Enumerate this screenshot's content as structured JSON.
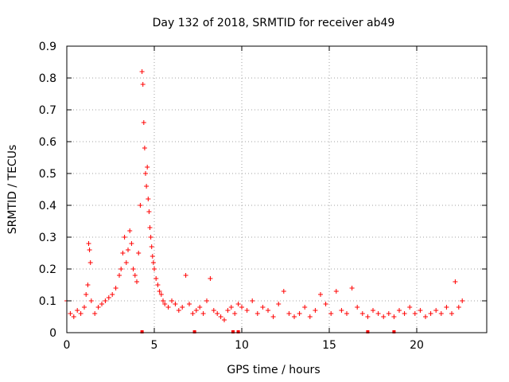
{
  "chart_data": {
    "type": "scatter",
    "title": "Day 132 of 2018, SRMTID for receiver ab49",
    "xlabel": "GPS time / hours",
    "ylabel": "SRMTID / TECUs",
    "xlim": [
      0,
      24
    ],
    "ylim": [
      0,
      0.9
    ],
    "xticks": [
      0,
      5,
      10,
      15,
      20
    ],
    "xtick_labels": [
      "0",
      "5",
      "10",
      "15",
      "20"
    ],
    "yticks": [
      0,
      0.1,
      0.2,
      0.3,
      0.4,
      0.5,
      0.6,
      0.7,
      0.8,
      0.9
    ],
    "ytick_labels": [
      "0",
      "0.1",
      "0.2",
      "0.3",
      "0.4",
      "0.5",
      "0.6",
      "0.7",
      "0.8",
      "0.9"
    ],
    "grid": true,
    "marker": "+",
    "color": "#ff0000",
    "series": [
      {
        "name": "SRMTID",
        "x": [
          0.0,
          0.2,
          0.4,
          0.6,
          0.8,
          1.0,
          1.1,
          1.2,
          1.25,
          1.3,
          1.35,
          1.4,
          1.6,
          1.8,
          2.0,
          2.2,
          2.4,
          2.6,
          2.8,
          3.0,
          3.1,
          3.2,
          3.3,
          3.4,
          3.5,
          3.6,
          3.7,
          3.8,
          3.9,
          4.0,
          4.1,
          4.2,
          4.3,
          4.35,
          4.4,
          4.45,
          4.5,
          4.55,
          4.6,
          4.65,
          4.7,
          4.75,
          4.8,
          4.85,
          4.9,
          4.95,
          5.0,
          5.1,
          5.2,
          5.3,
          5.4,
          5.5,
          5.6,
          5.8,
          6.0,
          6.2,
          6.4,
          6.6,
          6.8,
          7.0,
          7.2,
          7.4,
          7.6,
          7.8,
          8.0,
          8.2,
          8.4,
          8.6,
          8.8,
          9.0,
          9.2,
          9.4,
          9.6,
          9.8,
          10.0,
          10.3,
          10.6,
          10.9,
          11.2,
          11.5,
          11.8,
          12.1,
          12.4,
          12.7,
          13.0,
          13.3,
          13.6,
          13.9,
          14.2,
          14.5,
          14.8,
          15.1,
          15.4,
          15.7,
          16.0,
          16.3,
          16.6,
          16.9,
          17.2,
          17.5,
          17.8,
          18.1,
          18.4,
          18.7,
          19.0,
          19.3,
          19.6,
          19.9,
          20.2,
          20.5,
          20.8,
          21.1,
          21.4,
          21.7,
          22.0,
          22.2,
          22.4,
          22.6
        ],
        "y": [
          0.1,
          0.06,
          0.05,
          0.07,
          0.06,
          0.08,
          0.12,
          0.15,
          0.28,
          0.26,
          0.22,
          0.1,
          0.06,
          0.08,
          0.09,
          0.1,
          0.11,
          0.12,
          0.14,
          0.18,
          0.2,
          0.25,
          0.3,
          0.22,
          0.26,
          0.32,
          0.28,
          0.2,
          0.18,
          0.16,
          0.25,
          0.4,
          0.82,
          0.78,
          0.66,
          0.58,
          0.5,
          0.46,
          0.52,
          0.42,
          0.38,
          0.33,
          0.3,
          0.27,
          0.24,
          0.22,
          0.2,
          0.17,
          0.15,
          0.13,
          0.12,
          0.1,
          0.09,
          0.08,
          0.1,
          0.09,
          0.07,
          0.08,
          0.18,
          0.09,
          0.06,
          0.07,
          0.08,
          0.06,
          0.1,
          0.17,
          0.07,
          0.06,
          0.05,
          0.04,
          0.07,
          0.08,
          0.06,
          0.09,
          0.08,
          0.07,
          0.1,
          0.06,
          0.08,
          0.07,
          0.05,
          0.09,
          0.13,
          0.06,
          0.05,
          0.06,
          0.08,
          0.05,
          0.07,
          0.12,
          0.09,
          0.06,
          0.13,
          0.07,
          0.06,
          0.14,
          0.08,
          0.06,
          0.05,
          0.07,
          0.06,
          0.05,
          0.06,
          0.05,
          0.07,
          0.06,
          0.08,
          0.06,
          0.07,
          0.05,
          0.06,
          0.07,
          0.06,
          0.08,
          0.06,
          0.16,
          0.08,
          0.1
        ]
      }
    ],
    "markers_at_zero": [
      4.3,
      7.3,
      9.5,
      9.8,
      17.2,
      18.7
    ]
  }
}
